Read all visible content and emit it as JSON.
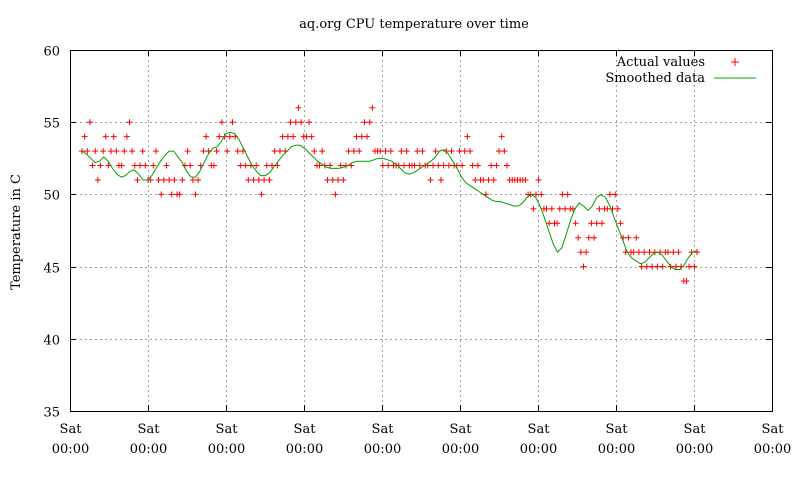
{
  "chart_data": {
    "type": "scatter",
    "title": "aq.org CPU temperature over time",
    "xlabel": "",
    "ylabel": "Temperature in C",
    "ylim": [
      35,
      60
    ],
    "yticks": [
      35,
      40,
      45,
      50,
      55,
      60
    ],
    "x_tick_labels": [
      {
        "day": "Sat",
        "time": "00:00"
      },
      {
        "day": "Sat",
        "time": "00:00"
      },
      {
        "day": "Sat",
        "time": "00:00"
      },
      {
        "day": "Sat",
        "time": "00:00"
      },
      {
        "day": "Sat",
        "time": "00:00"
      },
      {
        "day": "Sat",
        "time": "00:00"
      },
      {
        "day": "Sat",
        "time": "00:00"
      },
      {
        "day": "Sat",
        "time": "00:00"
      },
      {
        "day": "Sat",
        "time": "00:00"
      },
      {
        "day": "Sat",
        "time": "00:00"
      }
    ],
    "grid": true,
    "legend_position": "top-right",
    "series": [
      {
        "name": "Actual values",
        "marker": "plus",
        "color": "#ff0000",
        "values": [
          53,
          54,
          53,
          55,
          52,
          53,
          51,
          52,
          53,
          54,
          52,
          53,
          54,
          53,
          52,
          52,
          53,
          54,
          55,
          53,
          52,
          51,
          52,
          53,
          52,
          51,
          51,
          52,
          53,
          51,
          50,
          51,
          52,
          51,
          50,
          51,
          50,
          50,
          51,
          52,
          53,
          52,
          51,
          50,
          51,
          52,
          53,
          54,
          53,
          52,
          52,
          53,
          54,
          55,
          54,
          53,
          54,
          55,
          54,
          53,
          52,
          53,
          52,
          51,
          52,
          51,
          52,
          51,
          50,
          51,
          52,
          51,
          52,
          53,
          52,
          53,
          54,
          53,
          54,
          55,
          54,
          55,
          56,
          55,
          54,
          54,
          55,
          54,
          53,
          52,
          52,
          53,
          52,
          51,
          52,
          51,
          50,
          51,
          52,
          51,
          52,
          53,
          52,
          53,
          54,
          53,
          54,
          55,
          54,
          55,
          56,
          53,
          53,
          53,
          52,
          53,
          52,
          53,
          52,
          52,
          52,
          53,
          52,
          53,
          52,
          52,
          52,
          53,
          52,
          53,
          52,
          52,
          51,
          52,
          53,
          52,
          51,
          52,
          53,
          52,
          53,
          52,
          52,
          53,
          52,
          53,
          54,
          53,
          52,
          51,
          52,
          51,
          51,
          50,
          51,
          52,
          51,
          52,
          53,
          54,
          53,
          52,
          51,
          51,
          51,
          51,
          51,
          51,
          51,
          50,
          50,
          49,
          50,
          51,
          50,
          49,
          49,
          48,
          49,
          48,
          48,
          49,
          50,
          49,
          50,
          49,
          49,
          48,
          47,
          46,
          45,
          46,
          47,
          48,
          47,
          48,
          49,
          48,
          49,
          49,
          50,
          49,
          50,
          49,
          48,
          47,
          46,
          47,
          46,
          46,
          47,
          46,
          45,
          46,
          45,
          46,
          45,
          46,
          45,
          46,
          45,
          46,
          46,
          45,
          46,
          45,
          46,
          45,
          44,
          44,
          45,
          46,
          45,
          46
        ]
      },
      {
        "name": "Smoothed data",
        "color": "#00a000",
        "values": [
          53,
          52.8,
          52.5,
          52.2,
          52.3,
          52.6,
          52.3,
          51.8,
          51.4,
          51.2,
          51.3,
          51.6,
          51.7,
          51.4,
          51,
          51,
          51.3,
          51.8,
          52.3,
          52.7,
          53,
          53,
          52.6,
          52.2,
          51.6,
          51.2,
          51.2,
          51.6,
          52.2,
          52.8,
          53.2,
          53.3,
          53.7,
          54.2,
          54.3,
          54.2,
          53.8,
          53.2,
          52.6,
          52,
          51.6,
          51.3,
          51.3,
          51.5,
          51.9,
          52.3,
          52.7,
          53,
          53.3,
          53.4,
          53.4,
          53.2,
          52.9,
          52.6,
          52.3,
          52.1,
          51.9,
          51.8,
          51.8,
          51.8,
          51.9,
          52,
          52.2,
          52.3,
          52.3,
          52.3,
          52.3,
          52.4,
          52.5,
          52.5,
          52.4,
          52.3,
          52.1,
          51.8,
          51.5,
          51.4,
          51.5,
          51.7,
          51.9,
          52.1,
          52.3,
          52.6,
          53,
          53.1,
          52.8,
          52.3,
          51.8,
          51.2,
          50.8,
          50.6,
          50.4,
          50.2,
          50,
          49.8,
          49.6,
          49.5,
          49.5,
          49.4,
          49.3,
          49.2,
          49.2,
          49.4,
          49.8,
          50,
          49.8,
          49.2,
          48.4,
          47.5,
          46.6,
          46,
          46.3,
          47.2,
          48.2,
          49,
          49.4,
          49.2,
          48.9,
          49.2,
          49.8,
          50,
          49.8,
          49.2,
          48.4,
          47.6,
          46.8,
          46,
          45.6,
          45.4,
          45.2,
          45.3,
          45.6,
          45.9,
          46,
          45.8,
          45.4,
          45,
          44.8,
          44.8,
          45.1,
          45.6,
          46,
          46.1
        ]
      }
    ]
  }
}
